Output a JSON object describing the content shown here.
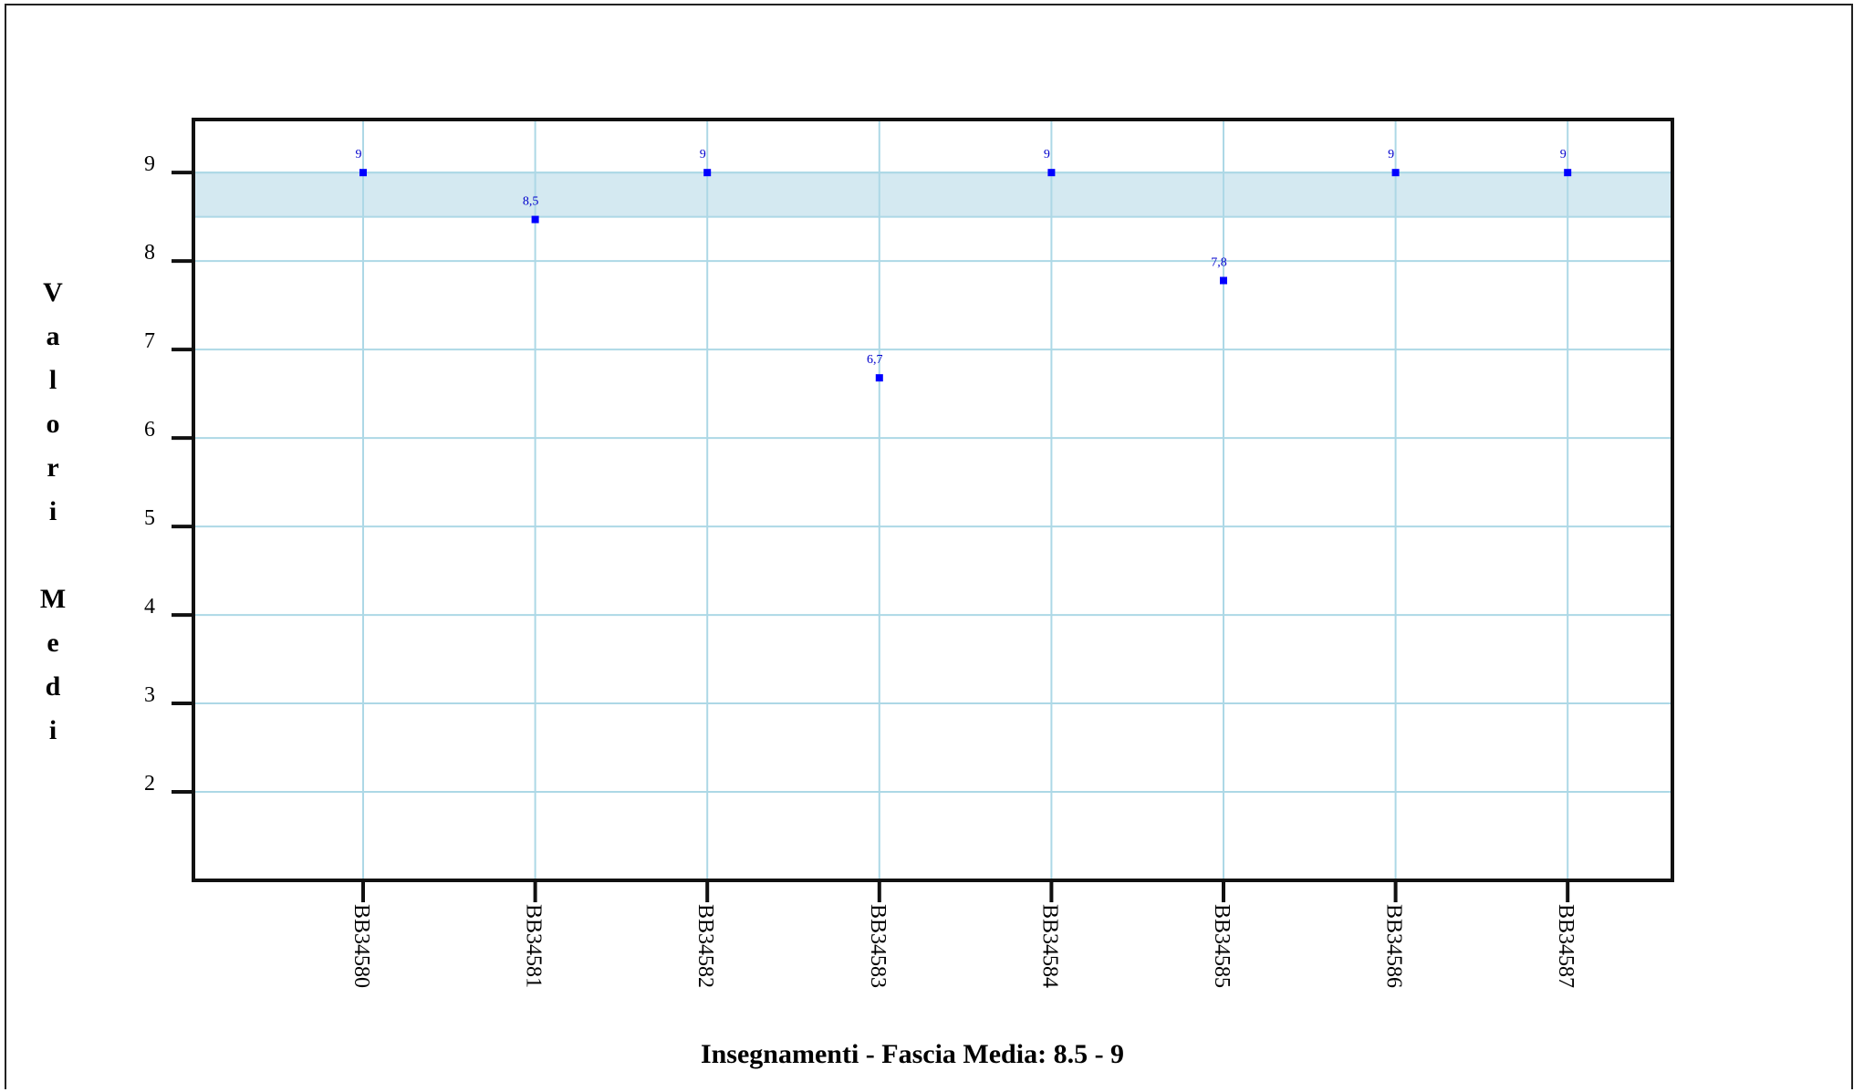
{
  "chart_data": {
    "type": "scatter",
    "categories": [
      "BB34580",
      "BB34581",
      "BB34582",
      "BB34583",
      "BB34584",
      "BB34585",
      "BB34586",
      "BB34587"
    ],
    "values": [
      9,
      8.47,
      9,
      6.68,
      9,
      7.78,
      9,
      9
    ],
    "data_labels": [
      "9",
      "8,5",
      "9",
      "6,7",
      "9",
      "7,8",
      "9",
      "9"
    ],
    "xlabel": "Insegnamenti - Fascia Media: 8.5 - 9",
    "ylabel_letters": [
      "V",
      "a",
      "l",
      "o",
      "r",
      "i",
      "",
      "M",
      "e",
      "d",
      "i"
    ],
    "yticks": [
      2,
      3,
      4,
      5,
      6,
      7,
      8,
      9
    ],
    "ylim": [
      1,
      9.6
    ],
    "band": [
      8.5,
      9
    ],
    "grid": true,
    "colors": {
      "band": "#d4e9f1",
      "grid": "#add8e6",
      "point": "#0000ff",
      "label": "#0000cc",
      "axis": "#111111"
    }
  }
}
